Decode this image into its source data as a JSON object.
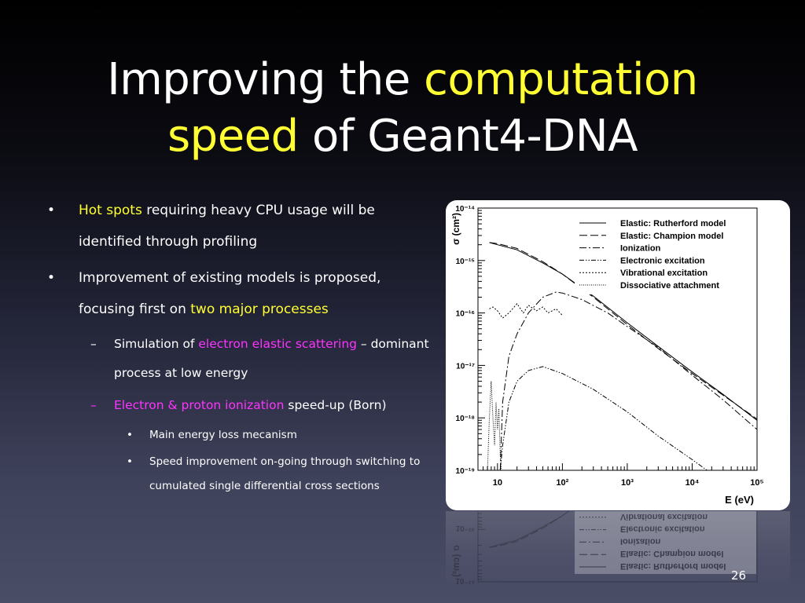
{
  "slide": {
    "title_part1": "Improving the ",
    "title_highlight1": "computation",
    "title_highlight2": "speed",
    "title_part2": " of Geant4-DNA",
    "page_number": "26",
    "colors": {
      "highlight_yellow": "#ffff33",
      "highlight_magenta": "#ff33ff"
    }
  },
  "bullets": {
    "b1": {
      "marker": "•",
      "highlight": "Hot spots",
      "text": " requiring heavy CPU usage will be identified through profiling"
    },
    "b2": {
      "marker": "•",
      "text": "Improvement of existing models is proposed, focusing first on ",
      "highlight": "two major processes"
    },
    "b2a": {
      "marker": "–",
      "text_before": "Simulation of ",
      "highlight": "electron elastic scattering",
      "text_after": " – dominant process at low energy"
    },
    "b2b": {
      "marker": "–",
      "highlight": "Electron & proton ionization",
      "text_after": " speed-up (Born)"
    },
    "b2b1": {
      "marker": "•",
      "text": "Main energy loss mecanism"
    },
    "b2b2": {
      "marker": "•",
      "text": "Speed improvement on-going through switching to cumulated single differential cross sections"
    }
  },
  "chart_data": {
    "type": "line",
    "xlabel": "E (eV)",
    "ylabel": "σ (cm²)",
    "x_scale": "log",
    "y_scale": "log",
    "xlim": [
      5,
      100000
    ],
    "ylim": [
      1e-19,
      1e-14
    ],
    "x_ticks": [
      10,
      100,
      1000,
      10000,
      100000
    ],
    "x_tick_labels": [
      "10",
      "10²",
      "10³",
      "10⁴",
      "10⁵"
    ],
    "y_ticks": [
      1e-14,
      1e-15,
      1e-16,
      1e-17,
      1e-18,
      1e-19
    ],
    "y_tick_labels": [
      "10⁻¹⁴",
      "10⁻¹⁵",
      "10⁻¹⁶",
      "10⁻¹⁷",
      "10⁻¹⁸",
      "10⁻¹⁹"
    ],
    "grid": false,
    "legend_position": "top-right",
    "series": [
      {
        "name": "Elastic: Rutherford model",
        "dash": "solid",
        "x": [
          7.5,
          10,
          20,
          50,
          100,
          300,
          1000,
          3000,
          10000,
          30000,
          100000
        ],
        "y": [
          2.2e-15,
          2e-15,
          1.6e-15,
          9e-16,
          5.5e-16,
          2.1e-16,
          6.5e-17,
          2.3e-17,
          7.5e-18,
          2.8e-18,
          9e-19
        ]
      },
      {
        "name": "Elastic: Champion model",
        "dash": "longdash",
        "x": [
          7.5,
          10,
          20,
          50,
          100,
          300,
          1000,
          3000,
          10000,
          30000,
          100000
        ],
        "y": [
          2.2e-15,
          2.1e-15,
          1.7e-15,
          9.5e-16,
          5.5e-16,
          2e-16,
          6e-17,
          2.1e-17,
          7e-18,
          2.7e-18,
          9.5e-19
        ]
      },
      {
        "name": "Ionization",
        "dash": "dashdot",
        "x": [
          11,
          12,
          15,
          20,
          30,
          50,
          80,
          100,
          200,
          500,
          1000,
          3000,
          10000,
          30000,
          100000
        ],
        "y": [
          1e-19,
          2e-18,
          1.5e-17,
          4e-17,
          1e-16,
          2e-16,
          2.5e-16,
          2.4e-16,
          1.8e-16,
          1e-16,
          5.5e-17,
          2.2e-17,
          6.5e-18,
          2.2e-18,
          6e-19
        ]
      },
      {
        "name": "Electronic excitation",
        "dash": "dashdotdot",
        "x": [
          11,
          12,
          15,
          20,
          30,
          50,
          100,
          300,
          1000,
          3000,
          10000,
          30000
        ],
        "y": [
          1e-19,
          3e-19,
          2e-18,
          5e-18,
          8e-18,
          9.5e-18,
          7e-18,
          3.5e-18,
          1.3e-18,
          4.5e-19,
          1.6e-19,
          6e-20
        ]
      },
      {
        "name": "Vibrational excitation",
        "dash": "dotted",
        "x": [
          7.5,
          8.5,
          10,
          12,
          15,
          20,
          25,
          30,
          40,
          50,
          60,
          80,
          100
        ],
        "y": [
          1.2e-16,
          1.3e-16,
          1.1e-16,
          8e-17,
          1e-16,
          1.5e-16,
          1e-16,
          1.4e-16,
          1.1e-16,
          1.3e-16,
          1e-16,
          1.2e-16,
          9e-17
        ]
      },
      {
        "name": "Dissociative attachment",
        "dash": "finedot",
        "x": [
          7,
          7.5,
          8,
          8.5,
          9,
          9.5,
          10,
          10.5,
          11,
          11.5,
          12
        ],
        "y": [
          1e-19,
          1e-18,
          5e-18,
          1e-18,
          3e-19,
          2e-18,
          6e-19,
          1.5e-18,
          2e-19,
          1e-19,
          1e-19
        ]
      }
    ]
  }
}
